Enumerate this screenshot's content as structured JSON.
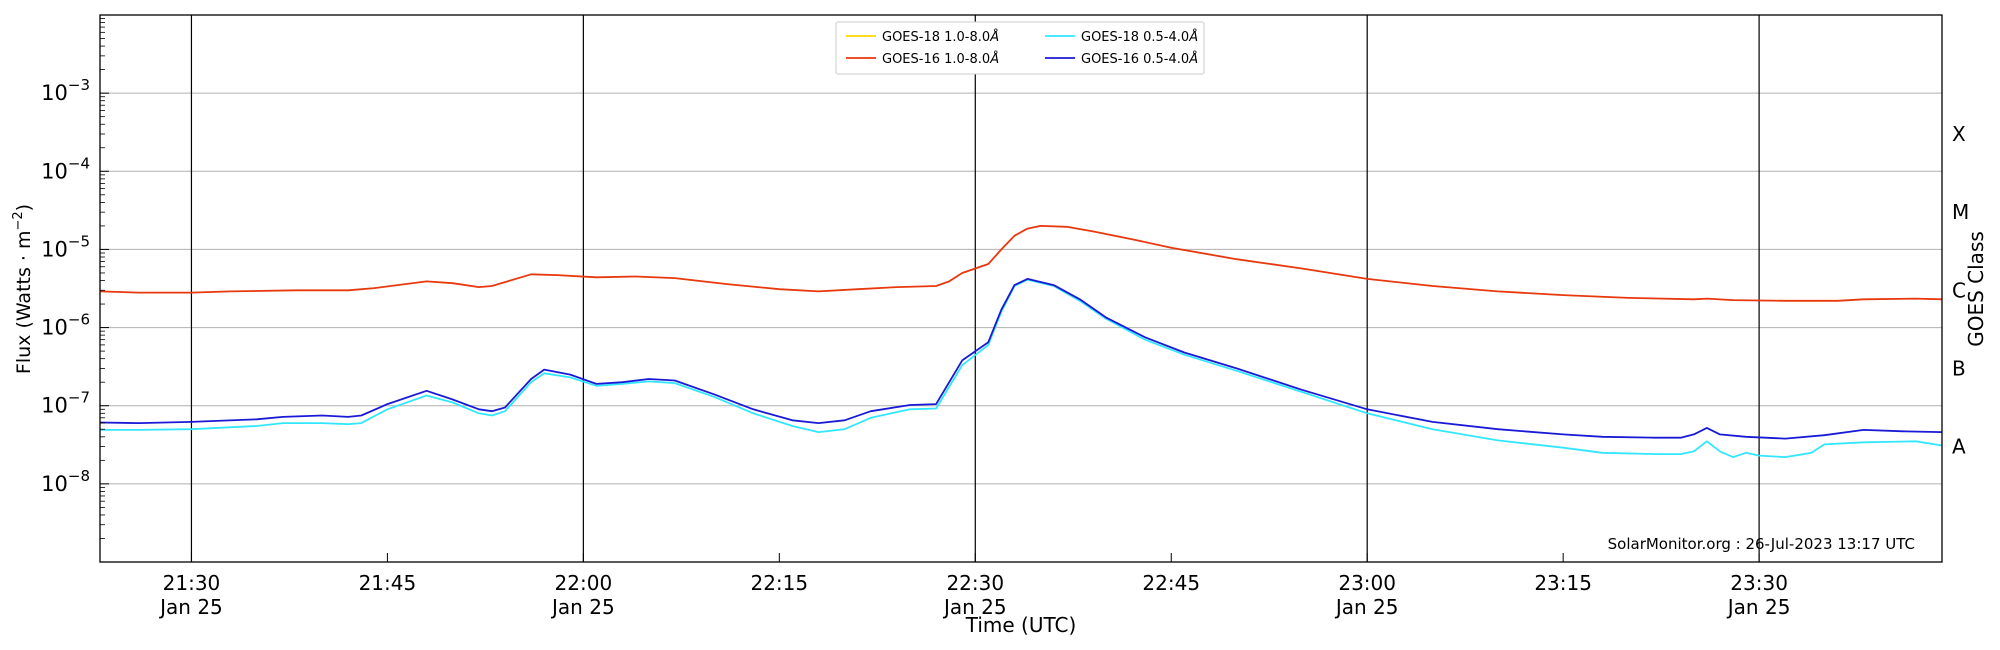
{
  "chart_data": {
    "type": "line",
    "xlabel": "Time (UTC)",
    "ylabel": "Flux (Watts · m",
    "ylabel_sup": "−2",
    "ylabel_close": ")",
    "right_axis_label": "GOES Class",
    "credit": "SolarMonitor.org : 26-Jul-2023 13:17 UTC",
    "y_scale": "log",
    "ylim": [
      1e-09,
      0.01
    ],
    "xlim": [
      "21:23",
      "23:44"
    ],
    "grid": "horizontal",
    "legend_location": "upper-center",
    "y_ticks": [
      {
        "value": 1e-08,
        "base": "10",
        "exp": "−8"
      },
      {
        "value": 1e-07,
        "base": "10",
        "exp": "−7"
      },
      {
        "value": 1e-06,
        "base": "10",
        "exp": "−6"
      },
      {
        "value": 1e-05,
        "base": "10",
        "exp": "−5"
      },
      {
        "value": 0.0001,
        "base": "10",
        "exp": "−4"
      },
      {
        "value": 0.001,
        "base": "10",
        "exp": "−3"
      }
    ],
    "goes_classes": [
      {
        "label": "A",
        "value": 3e-08
      },
      {
        "label": "B",
        "value": 3e-07
      },
      {
        "label": "C",
        "value": 3e-06
      },
      {
        "label": "M",
        "value": 3e-05
      },
      {
        "label": "X",
        "value": 0.0003
      }
    ],
    "x_ticks": [
      {
        "time": "21:30",
        "date": "Jan 25",
        "vline": true
      },
      {
        "time": "21:45",
        "date": "",
        "vline": false
      },
      {
        "time": "22:00",
        "date": "Jan 25",
        "vline": true
      },
      {
        "time": "22:15",
        "date": "",
        "vline": false
      },
      {
        "time": "22:30",
        "date": "Jan 25",
        "vline": true
      },
      {
        "time": "22:45",
        "date": "",
        "vline": false
      },
      {
        "time": "23:00",
        "date": "Jan 25",
        "vline": true
      },
      {
        "time": "23:15",
        "date": "",
        "vline": false
      },
      {
        "time": "23:30",
        "date": "Jan 25",
        "vline": true
      }
    ],
    "series": [
      {
        "name": "GOES-18 1.0-8.0",
        "color": "#ffd700",
        "points": []
      },
      {
        "name": "GOES-16 1.0-8.0",
        "color": "#e8380d",
        "points": [
          [
            "21:23",
            2.9e-06
          ],
          [
            "21:26",
            2.8e-06
          ],
          [
            "21:30",
            2.8e-06
          ],
          [
            "21:33",
            2.9e-06
          ],
          [
            "21:38",
            3e-06
          ],
          [
            "21:42",
            3e-06
          ],
          [
            "21:44",
            3.2e-06
          ],
          [
            "21:48",
            3.9e-06
          ],
          [
            "21:50",
            3.7e-06
          ],
          [
            "21:52",
            3.3e-06
          ],
          [
            "21:53",
            3.4e-06
          ],
          [
            "21:56",
            4.8e-06
          ],
          [
            "21:58",
            4.7e-06
          ],
          [
            "22:01",
            4.4e-06
          ],
          [
            "22:04",
            4.5e-06
          ],
          [
            "22:07",
            4.3e-06
          ],
          [
            "22:11",
            3.6e-06
          ],
          [
            "22:15",
            3.1e-06
          ],
          [
            "22:18",
            2.9e-06
          ],
          [
            "22:21",
            3.1e-06
          ],
          [
            "22:24",
            3.3e-06
          ],
          [
            "22:27",
            3.4e-06
          ],
          [
            "22:28",
            3.9e-06
          ],
          [
            "22:29",
            5e-06
          ],
          [
            "22:31",
            6.5e-06
          ],
          [
            "22:32",
            1e-05
          ],
          [
            "22:33",
            1.5e-05
          ],
          [
            "22:34",
            1.85e-05
          ],
          [
            "22:35",
            2e-05
          ],
          [
            "22:37",
            1.95e-05
          ],
          [
            "22:39",
            1.7e-05
          ],
          [
            "22:42",
            1.35e-05
          ],
          [
            "22:45",
            1.05e-05
          ],
          [
            "22:50",
            7.5e-06
          ],
          [
            "22:55",
            5.7e-06
          ],
          [
            "23:00",
            4.2e-06
          ],
          [
            "23:05",
            3.4e-06
          ],
          [
            "23:10",
            2.9e-06
          ],
          [
            "23:15",
            2.6e-06
          ],
          [
            "23:20",
            2.4e-06
          ],
          [
            "23:25",
            2.3e-06
          ],
          [
            "23:26",
            2.35e-06
          ],
          [
            "23:28",
            2.25e-06
          ],
          [
            "23:32",
            2.2e-06
          ],
          [
            "23:36",
            2.2e-06
          ],
          [
            "23:38",
            2.3e-06
          ],
          [
            "23:42",
            2.35e-06
          ],
          [
            "23:44",
            2.3e-06
          ]
        ]
      },
      {
        "name": "GOES-18 0.5-4.0",
        "color": "#33e6ff",
        "points": [
          [
            "21:23",
            4.9e-08
          ],
          [
            "21:26",
            4.9e-08
          ],
          [
            "21:30",
            5e-08
          ],
          [
            "21:35",
            5.5e-08
          ],
          [
            "21:37",
            6e-08
          ],
          [
            "21:40",
            6e-08
          ],
          [
            "21:42",
            5.8e-08
          ],
          [
            "21:43",
            6e-08
          ],
          [
            "21:45",
            9e-08
          ],
          [
            "21:48",
            1.35e-07
          ],
          [
            "21:50",
            1.1e-07
          ],
          [
            "21:52",
            8e-08
          ],
          [
            "21:53",
            7.5e-08
          ],
          [
            "21:54",
            8.5e-08
          ],
          [
            "21:56",
            2e-07
          ],
          [
            "21:57",
            2.6e-07
          ],
          [
            "21:59",
            2.3e-07
          ],
          [
            "22:01",
            1.8e-07
          ],
          [
            "22:03",
            1.9e-07
          ],
          [
            "22:05",
            2.05e-07
          ],
          [
            "22:07",
            1.95e-07
          ],
          [
            "22:10",
            1.3e-07
          ],
          [
            "22:13",
            8e-08
          ],
          [
            "22:16",
            5.5e-08
          ],
          [
            "22:18",
            4.6e-08
          ],
          [
            "22:20",
            5e-08
          ],
          [
            "22:22",
            7e-08
          ],
          [
            "22:25",
            9e-08
          ],
          [
            "22:27",
            9.2e-08
          ],
          [
            "22:29",
            3.3e-07
          ],
          [
            "22:31",
            6e-07
          ],
          [
            "22:32",
            1.6e-06
          ],
          [
            "22:33",
            3.4e-06
          ],
          [
            "22:34",
            4.1e-06
          ],
          [
            "22:36",
            3.4e-06
          ],
          [
            "22:38",
            2.2e-06
          ],
          [
            "22:40",
            1.3e-06
          ],
          [
            "22:43",
            7e-07
          ],
          [
            "22:46",
            4.5e-07
          ],
          [
            "22:50",
            2.8e-07
          ],
          [
            "22:55",
            1.5e-07
          ],
          [
            "23:00",
            8e-08
          ],
          [
            "23:05",
            5e-08
          ],
          [
            "23:10",
            3.6e-08
          ],
          [
            "23:15",
            2.9e-08
          ],
          [
            "23:18",
            2.5e-08
          ],
          [
            "23:22",
            2.4e-08
          ],
          [
            "23:24",
            2.4e-08
          ],
          [
            "23:25",
            2.6e-08
          ],
          [
            "23:26",
            3.5e-08
          ],
          [
            "23:27",
            2.6e-08
          ],
          [
            "23:28",
            2.2e-08
          ],
          [
            "23:29",
            2.5e-08
          ],
          [
            "23:30",
            2.3e-08
          ],
          [
            "23:32",
            2.2e-08
          ],
          [
            "23:34",
            2.5e-08
          ],
          [
            "23:35",
            3.2e-08
          ],
          [
            "23:38",
            3.4e-08
          ],
          [
            "23:42",
            3.5e-08
          ],
          [
            "23:44",
            3.1e-08
          ]
        ]
      },
      {
        "name": "GOES-16 0.5-4.0",
        "color": "#1a1ad6",
        "points": [
          [
            "21:23",
            6.1e-08
          ],
          [
            "21:26",
            6e-08
          ],
          [
            "21:30",
            6.2e-08
          ],
          [
            "21:35",
            6.7e-08
          ],
          [
            "21:37",
            7.2e-08
          ],
          [
            "21:40",
            7.5e-08
          ],
          [
            "21:42",
            7.2e-08
          ],
          [
            "21:43",
            7.5e-08
          ],
          [
            "21:45",
            1.05e-07
          ],
          [
            "21:48",
            1.55e-07
          ],
          [
            "21:50",
            1.2e-07
          ],
          [
            "21:52",
            9e-08
          ],
          [
            "21:53",
            8.5e-08
          ],
          [
            "21:54",
            9.5e-08
          ],
          [
            "21:56",
            2.2e-07
          ],
          [
            "21:57",
            2.9e-07
          ],
          [
            "21:59",
            2.5e-07
          ],
          [
            "22:01",
            1.9e-07
          ],
          [
            "22:03",
            2e-07
          ],
          [
            "22:05",
            2.2e-07
          ],
          [
            "22:07",
            2.1e-07
          ],
          [
            "22:10",
            1.4e-07
          ],
          [
            "22:13",
            9e-08
          ],
          [
            "22:16",
            6.5e-08
          ],
          [
            "22:18",
            6e-08
          ],
          [
            "22:20",
            6.5e-08
          ],
          [
            "22:22",
            8.5e-08
          ],
          [
            "22:25",
            1.02e-07
          ],
          [
            "22:27",
            1.05e-07
          ],
          [
            "22:29",
            3.8e-07
          ],
          [
            "22:31",
            6.5e-07
          ],
          [
            "22:32",
            1.7e-06
          ],
          [
            "22:33",
            3.5e-06
          ],
          [
            "22:34",
            4.2e-06
          ],
          [
            "22:36",
            3.5e-06
          ],
          [
            "22:38",
            2.3e-06
          ],
          [
            "22:40",
            1.35e-06
          ],
          [
            "22:43",
            7.5e-07
          ],
          [
            "22:46",
            4.8e-07
          ],
          [
            "22:50",
            3e-07
          ],
          [
            "22:55",
            1.6e-07
          ],
          [
            "23:00",
            9e-08
          ],
          [
            "23:05",
            6.2e-08
          ],
          [
            "23:10",
            5e-08
          ],
          [
            "23:15",
            4.3e-08
          ],
          [
            "23:18",
            4e-08
          ],
          [
            "23:22",
            3.9e-08
          ],
          [
            "23:24",
            3.9e-08
          ],
          [
            "23:25",
            4.3e-08
          ],
          [
            "23:26",
            5.2e-08
          ],
          [
            "23:27",
            4.3e-08
          ],
          [
            "23:29",
            4e-08
          ],
          [
            "23:32",
            3.8e-08
          ],
          [
            "23:35",
            4.2e-08
          ],
          [
            "23:38",
            4.9e-08
          ],
          [
            "23:41",
            4.7e-08
          ],
          [
            "23:44",
            4.6e-08
          ]
        ]
      }
    ]
  }
}
